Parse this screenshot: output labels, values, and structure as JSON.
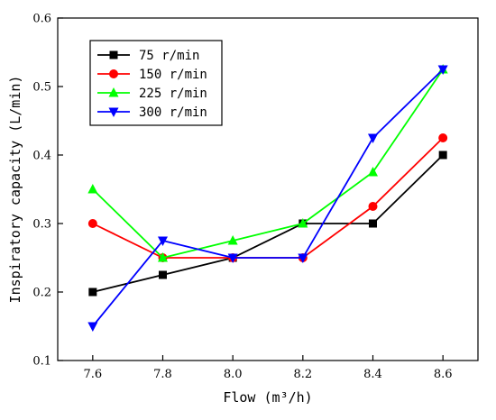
{
  "chart_data": {
    "type": "line",
    "title": "",
    "xlabel": "Flow (m³/h)",
    "ylabel": "Inspiratory capacity (L/min)",
    "xlim": [
      7.5,
      8.7
    ],
    "ylim": [
      0.1,
      0.6
    ],
    "xticks": [
      "7.6",
      "7.8",
      "8.0",
      "8.2",
      "8.4",
      "8.6"
    ],
    "yticks": [
      "0.1",
      "0.2",
      "0.3",
      "0.4",
      "0.5",
      "0.6"
    ],
    "x": [
      7.6,
      7.8,
      8.0,
      8.2,
      8.4,
      8.6
    ],
    "grid": false,
    "legend_position": "top-left",
    "series": [
      {
        "name": "75 r/min",
        "color": "#000000",
        "marker": "square",
        "values": [
          0.2,
          0.225,
          0.25,
          0.3,
          0.3,
          0.4
        ]
      },
      {
        "name": "150 r/min",
        "color": "#ff0000",
        "marker": "circle",
        "values": [
          0.3,
          0.25,
          0.25,
          0.25,
          0.325,
          0.425
        ]
      },
      {
        "name": "225 r/min",
        "color": "#00ff00",
        "marker": "triangle-up",
        "values": [
          0.35,
          0.25,
          0.275,
          0.3,
          0.375,
          0.525
        ]
      },
      {
        "name": "300 r/min",
        "color": "#0000ff",
        "marker": "triangle-down",
        "values": [
          0.15,
          0.275,
          0.25,
          0.25,
          0.425,
          0.525
        ]
      }
    ]
  }
}
